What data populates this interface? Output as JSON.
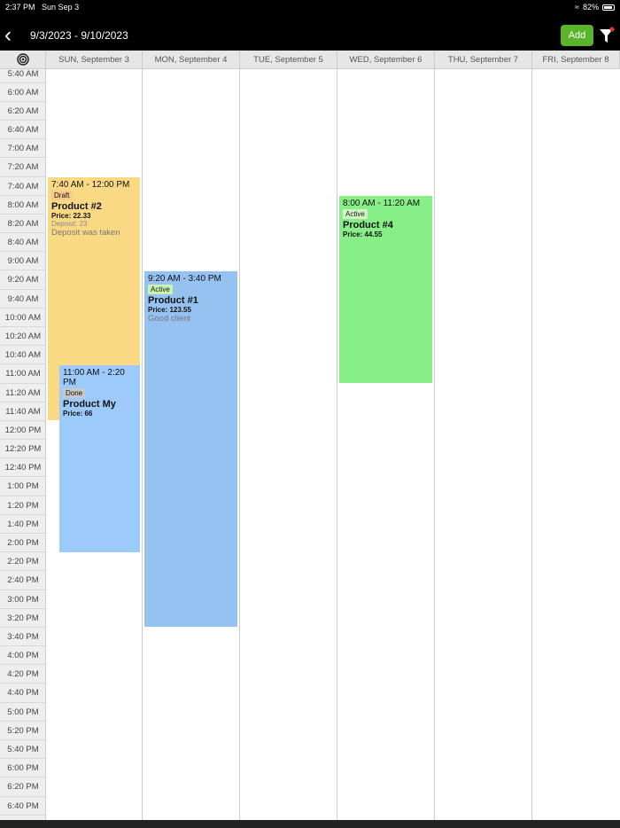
{
  "status": {
    "time": "2:37 PM",
    "date": "Sun Sep 3",
    "battery": "82%",
    "battery_level": 0.82
  },
  "header": {
    "range": "9/3/2023 - 9/10/2023",
    "add_label": "Add"
  },
  "days": [
    "SUN, September 3",
    "MON, September 4",
    "TUE, September 5",
    "WED, September 6",
    "THU, September 7",
    "FRI, September 8"
  ],
  "times": [
    "5:40 AM",
    "6:00 AM",
    "6:20 AM",
    "6:40 AM",
    "7:00 AM",
    "7:20 AM",
    "7:40 AM",
    "8:00 AM",
    "8:20 AM",
    "8:40 AM",
    "9:00 AM",
    "9:20 AM",
    "9:40 AM",
    "10:00 AM",
    "10:20 AM",
    "10:40 AM",
    "11:00 AM",
    "11:20 AM",
    "11:40 AM",
    "12:00 PM",
    "12:20 PM",
    "12:40 PM",
    "1:00 PM",
    "1:20 PM",
    "1:40 PM",
    "2:00 PM",
    "2:20 PM",
    "2:40 PM",
    "3:00 PM",
    "3:20 PM",
    "3:40 PM",
    "4:00 PM",
    "4:20 PM",
    "4:40 PM",
    "5:00 PM",
    "5:20 PM",
    "5:40 PM",
    "6:00 PM",
    "6:20 PM",
    "6:40 PM"
  ],
  "events": [
    {
      "time": "7:40 AM - 12:00 PM",
      "status": "Draft",
      "name": "Product #2",
      "price": "Price: 22.33",
      "deposit": "Deposit: 23",
      "note": "Deposit was taken",
      "color": "#fad985",
      "badge": "#f9c98a"
    },
    {
      "time": "11:00 AM - 2:20 PM",
      "status": "Done",
      "name": "Product My",
      "price": "Price: 66",
      "color": "#9ccbfb",
      "badge": "#c8c8c8"
    },
    {
      "time": "9:20 AM - 3:40 PM",
      "status": "Active",
      "name": "Product #1",
      "price": "Price: 123.55",
      "note": "Good client",
      "color": "#96c2f1",
      "badge": "#c9f5b0"
    },
    {
      "time": "8:00 AM - 11:20 AM",
      "status": "Active",
      "name": "Product #4",
      "price": "Price: 44.55",
      "color": "#88ef88",
      "badge": "#d2f7c4"
    }
  ]
}
